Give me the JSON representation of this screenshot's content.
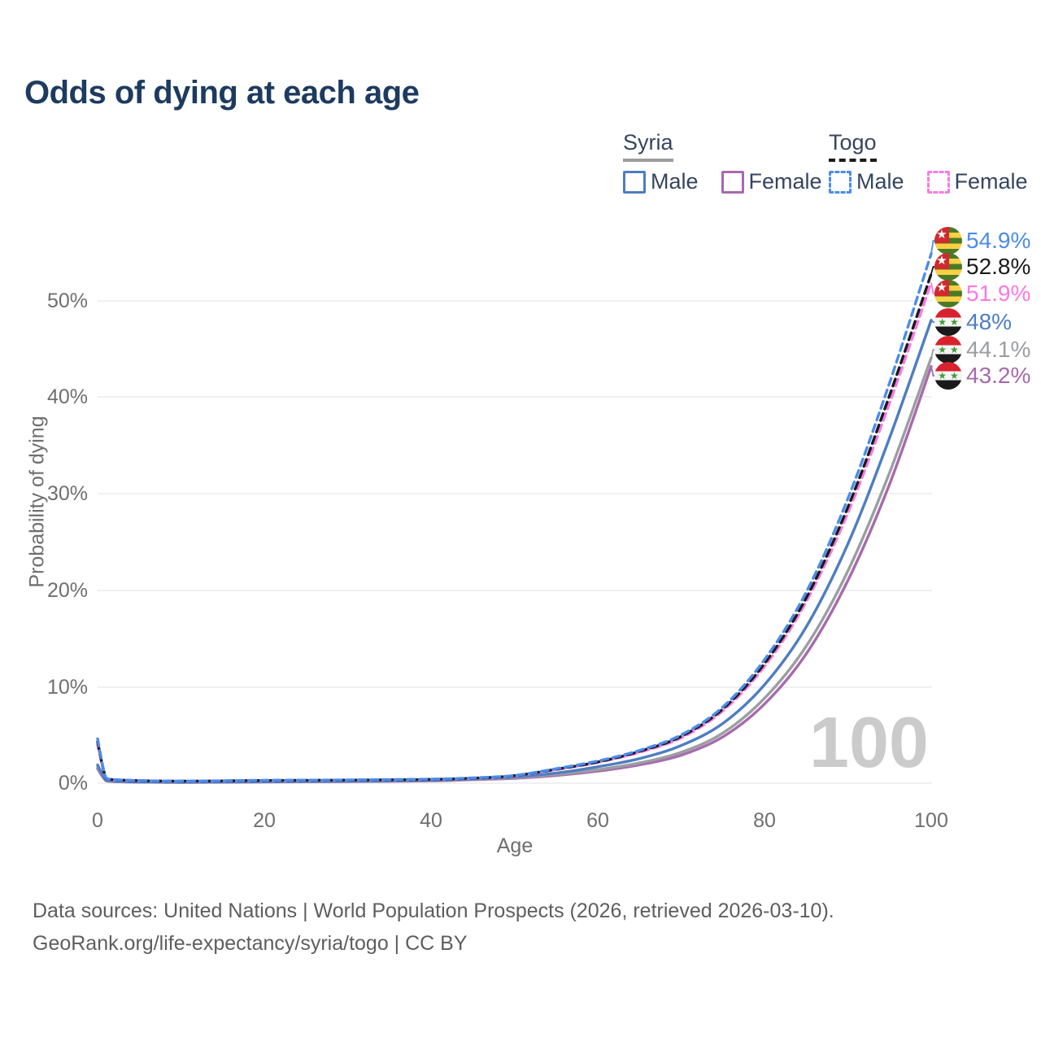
{
  "title": "Odds of dying at each age",
  "legend": {
    "groups": [
      {
        "country": "Syria",
        "line_style": "solid",
        "underline_color": "#9c9c9c",
        "items": [
          {
            "label": "Male",
            "color": "#4e7dc1",
            "dashed": false
          },
          {
            "label": "Female",
            "color": "#a76aad",
            "dashed": false
          }
        ]
      },
      {
        "country": "Togo",
        "line_style": "dashed",
        "underline_color": "#1b1b1b",
        "items": [
          {
            "label": "Male",
            "color": "#4b8ceb",
            "dashed": true
          },
          {
            "label": "Female",
            "color": "#fb79e3",
            "dashed": true
          }
        ]
      }
    ]
  },
  "axes": {
    "x": {
      "label": "Age",
      "ticks": [
        "0",
        "20",
        "40",
        "60",
        "80",
        "100"
      ]
    },
    "y": {
      "label": "Probability of dying",
      "ticks": [
        "0%",
        "10%",
        "20%",
        "30%",
        "40%",
        "50%"
      ]
    }
  },
  "watermark": "100",
  "footer": {
    "line1": "Data sources: United Nations | World Population Prospects (2026, retrieved 2026-03-10).",
    "line2": "GeoRank.org/life-expectancy/syria/togo | CC BY"
  },
  "chart_data": {
    "type": "line",
    "title": "Odds of dying at each age",
    "xlabel": "Age",
    "ylabel": "Probability of dying",
    "x": [
      0,
      1,
      2,
      5,
      10,
      20,
      30,
      40,
      45,
      50,
      55,
      60,
      65,
      70,
      75,
      80,
      85,
      90,
      95,
      100
    ],
    "xlim": [
      0,
      100
    ],
    "ylim": [
      0,
      57
    ],
    "y_unit": "percent",
    "grid": "horizontal",
    "legend_position": "top-right",
    "series": [
      {
        "name": "Togo Male",
        "country": "Togo",
        "sex": "Male",
        "flag": "togo",
        "color": "#4b8ceb",
        "dashed": true,
        "end_label": "54.9%",
        "end_value": 54.9,
        "values": [
          4.6,
          0.55,
          0.38,
          0.28,
          0.22,
          0.3,
          0.34,
          0.42,
          0.55,
          0.8,
          1.5,
          2.3,
          3.4,
          5.0,
          7.9,
          12.8,
          19.8,
          29.5,
          41.5,
          54.9
        ]
      },
      {
        "name": "Togo Both sexes",
        "country": "Togo",
        "sex": "Both",
        "flag": "togo",
        "color": "#1b1b1b",
        "dashed": true,
        "end_label": "52.8%",
        "end_value": 52.8,
        "values": [
          4.3,
          0.52,
          0.36,
          0.26,
          0.21,
          0.28,
          0.32,
          0.4,
          0.52,
          0.78,
          1.45,
          2.2,
          3.3,
          4.85,
          7.7,
          12.4,
          19.2,
          28.6,
          40.2,
          52.8
        ]
      },
      {
        "name": "Togo Female",
        "country": "Togo",
        "sex": "Female",
        "flag": "togo",
        "color": "#fb79e3",
        "dashed": true,
        "end_label": "51.9%",
        "end_value": 51.9,
        "values": [
          4.0,
          0.5,
          0.34,
          0.25,
          0.2,
          0.26,
          0.3,
          0.38,
          0.5,
          0.75,
          1.4,
          2.15,
          3.2,
          4.7,
          7.5,
          12.1,
          18.8,
          28.0,
          39.4,
          51.9
        ]
      },
      {
        "name": "Syria Male",
        "country": "Syria",
        "sex": "Male",
        "flag": "syria",
        "color": "#4e7dc1",
        "dashed": false,
        "end_label": "48%",
        "end_value": 48,
        "values": [
          1.9,
          0.3,
          0.2,
          0.13,
          0.1,
          0.17,
          0.21,
          0.3,
          0.45,
          0.65,
          1.05,
          1.7,
          2.55,
          3.9,
          6.2,
          10.2,
          16.2,
          24.8,
          35.8,
          48.0
        ]
      },
      {
        "name": "Syria Both sexes",
        "country": "Syria",
        "sex": "Both",
        "flag": "syria",
        "color": "#9b9ea1",
        "dashed": false,
        "end_label": "44.1%",
        "end_value": 44.1,
        "values": [
          1.7,
          0.27,
          0.18,
          0.12,
          0.09,
          0.14,
          0.18,
          0.27,
          0.4,
          0.57,
          0.9,
          1.4,
          2.1,
          3.2,
          5.2,
          8.8,
          14.2,
          22.0,
          32.2,
          44.1
        ]
      },
      {
        "name": "Syria Female",
        "country": "Syria",
        "sex": "Female",
        "flag": "syria",
        "color": "#a76aad",
        "dashed": false,
        "end_label": "43.2%",
        "end_value": 43.2,
        "values": [
          1.5,
          0.25,
          0.17,
          0.11,
          0.08,
          0.12,
          0.16,
          0.24,
          0.36,
          0.5,
          0.8,
          1.25,
          1.9,
          2.9,
          4.8,
          8.2,
          13.4,
          21.0,
          31.0,
          43.2
        ]
      }
    ]
  }
}
